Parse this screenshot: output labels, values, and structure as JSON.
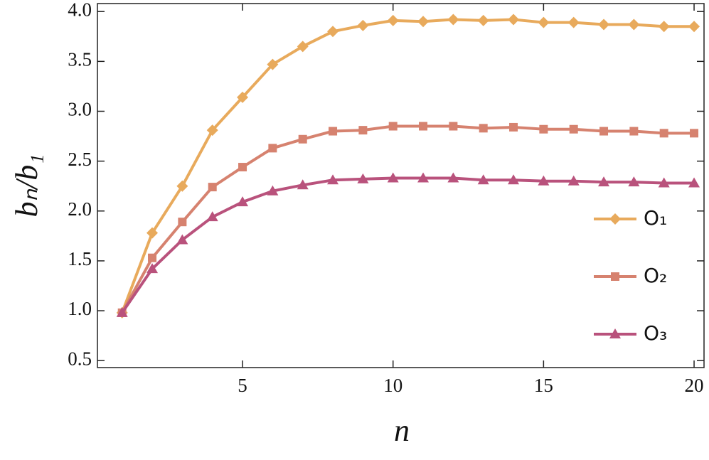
{
  "chart_data": {
    "type": "line",
    "xlabel": "n",
    "ylabel": "bₙ/b₁",
    "x": [
      1,
      2,
      3,
      4,
      5,
      6,
      7,
      8,
      9,
      10,
      11,
      12,
      13,
      14,
      15,
      16,
      17,
      18,
      19,
      20
    ],
    "series": [
      {
        "name": "O₁",
        "color": "#e8aa5c",
        "marker": "diamond",
        "values": [
          0.98,
          1.78,
          2.25,
          2.81,
          3.14,
          3.47,
          3.65,
          3.8,
          3.86,
          3.91,
          3.9,
          3.92,
          3.91,
          3.92,
          3.89,
          3.89,
          3.87,
          3.87,
          3.85,
          3.85
        ]
      },
      {
        "name": "O₂",
        "color": "#d6826f",
        "marker": "square",
        "values": [
          0.98,
          1.53,
          1.89,
          2.24,
          2.44,
          2.63,
          2.72,
          2.8,
          2.81,
          2.85,
          2.85,
          2.85,
          2.83,
          2.84,
          2.82,
          2.82,
          2.8,
          2.8,
          2.78,
          2.78
        ]
      },
      {
        "name": "O₃",
        "color": "#b9527c",
        "marker": "triangle",
        "values": [
          0.98,
          1.42,
          1.71,
          1.94,
          2.09,
          2.2,
          2.26,
          2.31,
          2.32,
          2.33,
          2.33,
          2.33,
          2.31,
          2.31,
          2.3,
          2.3,
          2.29,
          2.29,
          2.28,
          2.28
        ]
      }
    ],
    "xlim": [
      0.18,
      20.33
    ],
    "ylim": [
      0.43,
      4.08
    ],
    "xticks": [
      5,
      10,
      15,
      20
    ],
    "yticks": [
      {
        "value": 0.5,
        "label": "0.5"
      },
      {
        "value": 1.0,
        "label": "1.0"
      },
      {
        "value": 1.5,
        "label": "1.5"
      },
      {
        "value": 2.0,
        "label": "2.0"
      },
      {
        "value": 2.5,
        "label": "2.5"
      },
      {
        "value": 3.0,
        "label": "3.0"
      },
      {
        "value": 3.5,
        "label": "3.5"
      },
      {
        "value": 4.0,
        "label": "4.0"
      }
    ],
    "legend": "right"
  }
}
